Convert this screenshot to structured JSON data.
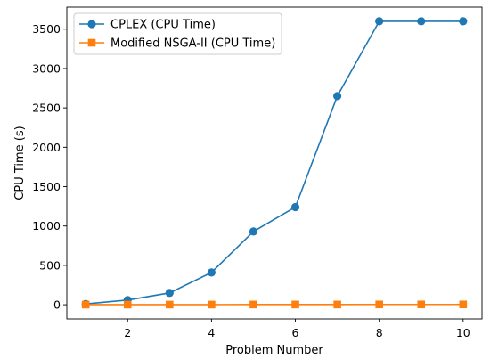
{
  "chart_data": {
    "type": "line",
    "xlabel": "Problem Number",
    "ylabel": "CPU Time (s)",
    "xlim": [
      0.55,
      10.45
    ],
    "ylim": [
      -180,
      3780
    ],
    "xticks": [
      2,
      4,
      6,
      8,
      10
    ],
    "yticks": [
      0,
      500,
      1000,
      1500,
      2000,
      2500,
      3000,
      3500
    ],
    "grid": false,
    "legend_position": "top-left",
    "x": [
      1,
      2,
      3,
      4,
      5,
      6,
      7,
      8,
      9,
      10
    ],
    "series": [
      {
        "name": "CPLEX (CPU Time)",
        "marker": "circle",
        "color": "#1f77b4",
        "values": [
          10,
          60,
          150,
          410,
          930,
          1240,
          2650,
          3600,
          3600,
          3600
        ]
      },
      {
        "name": "Modified NSGA-II (CPU Time)",
        "marker": "square",
        "color": "#ff7f0e",
        "values": [
          2,
          2,
          2,
          2,
          3,
          3,
          3,
          4,
          4,
          4
        ]
      }
    ]
  }
}
